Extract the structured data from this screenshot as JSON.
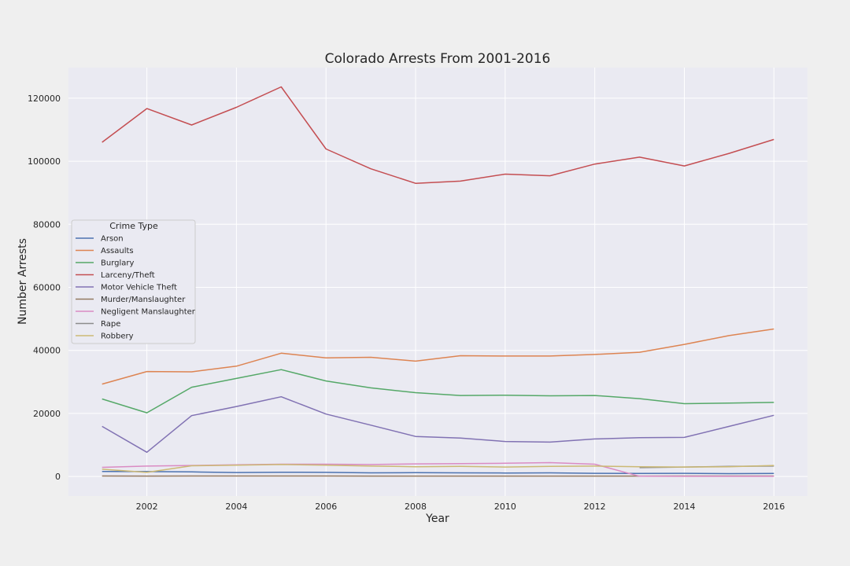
{
  "chart_data": {
    "type": "line",
    "title": "Colorado Arrests From 2001-2016",
    "xlabel": "Year",
    "ylabel": "Number Arrests",
    "x": [
      2001,
      2002,
      2003,
      2004,
      2005,
      2006,
      2007,
      2008,
      2009,
      2010,
      2011,
      2012,
      2013,
      2014,
      2015,
      2016
    ],
    "xlim": [
      2000.25,
      2016.75
    ],
    "ylim": [
      -6200,
      129700
    ],
    "x_ticks": [
      2002,
      2004,
      2006,
      2008,
      2010,
      2012,
      2014,
      2016
    ],
    "y_ticks": [
      0,
      20000,
      40000,
      60000,
      80000,
      100000,
      120000
    ],
    "grid": true,
    "legend": {
      "title": "Crime Type",
      "placement": "center-left"
    },
    "series": [
      {
        "name": "Arson",
        "color": "#4c72b0",
        "values": [
          1600,
          1550,
          1450,
          1250,
          1350,
          1300,
          1150,
          1200,
          1150,
          1100,
          1150,
          1000,
          950,
          1000,
          900,
          950
        ]
      },
      {
        "name": "Assaults",
        "color": "#dd8452",
        "values": [
          29300,
          33300,
          33200,
          35000,
          39100,
          37600,
          37800,
          36600,
          38300,
          38200,
          38200,
          38700,
          39400,
          41900,
          44700,
          46800
        ]
      },
      {
        "name": "Burglary",
        "color": "#55a868",
        "values": [
          24600,
          20200,
          28300,
          31100,
          33900,
          30300,
          28100,
          26600,
          25700,
          25800,
          25600,
          25700,
          24700,
          23100,
          23300,
          23500
        ]
      },
      {
        "name": "Larceny/Theft",
        "color": "#c44e52",
        "values": [
          106000,
          116700,
          111500,
          117100,
          123600,
          103900,
          97600,
          93000,
          93700,
          95900,
          95400,
          99100,
          101300,
          98500,
          102500,
          106900
        ]
      },
      {
        "name": "Motor Vehicle Theft",
        "color": "#8172b3",
        "values": [
          15900,
          7700,
          19300,
          22200,
          25300,
          19800,
          16300,
          12700,
          12200,
          11100,
          10900,
          11900,
          12300,
          12400,
          15900,
          19400
        ]
      },
      {
        "name": "Murder/Manslaughter",
        "color": "#937860",
        "values": [
          150,
          140,
          160,
          155,
          170,
          150,
          140,
          135,
          130,
          125,
          130,
          140,
          135,
          150,
          160,
          170
        ]
      },
      {
        "name": "Negligent Manslaughter",
        "color": "#da8bc3",
        "values": [
          2900,
          3300,
          3500,
          3700,
          3900,
          3900,
          3800,
          4000,
          4100,
          4200,
          4400,
          3900,
          80,
          60,
          50,
          60
        ]
      },
      {
        "name": "Rape",
        "color": "#8c8c8c",
        "values": [
          null,
          null,
          null,
          null,
          null,
          null,
          null,
          null,
          null,
          null,
          null,
          null,
          2800,
          3000,
          3200,
          3300
        ]
      },
      {
        "name": "Robbery",
        "color": "#ccb974",
        "values": [
          2300,
          1300,
          3400,
          3600,
          3800,
          3600,
          3300,
          3100,
          3200,
          3000,
          3200,
          3300,
          3100,
          3000,
          3100,
          3500
        ]
      }
    ]
  }
}
